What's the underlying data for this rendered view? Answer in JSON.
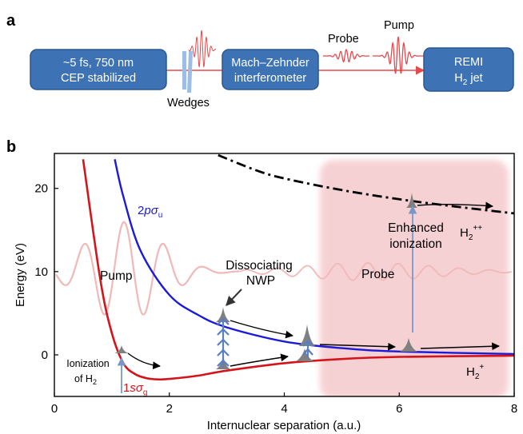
{
  "panel_a": {
    "label": "a",
    "laser_box": {
      "line1": "~5 fs, 750 nm",
      "line2": "CEP stabilized"
    },
    "wedges_label": "Wedges",
    "interferometer_box": {
      "line1": "Mach–Zehnder",
      "line2": "interferometer"
    },
    "probe_label": "Probe",
    "pump_label": "Pump",
    "remi_box": {
      "line1": "REMI",
      "line2_main": "H",
      "line2_sub": "2",
      "line2_rest": " jet"
    },
    "colors": {
      "box_fill": "#3d72b4",
      "box_stroke": "#2a5890",
      "beam": "#e8484b",
      "wedge": "#9dbde6"
    }
  },
  "panel_b": {
    "label": "b",
    "curve_labels": {
      "sigma_u": {
        "num": "2",
        "p": "p",
        "sig": "σ",
        "sub": "u"
      },
      "sigma_g": {
        "num": "1",
        "s": "s",
        "sig": "σ",
        "sub": "g"
      },
      "h2pp": {
        "main": "H",
        "sub": "2",
        "sup": "++"
      },
      "h2p": {
        "main": "H",
        "sub": "2",
        "sup": "+"
      }
    },
    "annotations": {
      "pump": "Pump",
      "probe": "Probe",
      "dissociating_line1": "Dissociating",
      "dissociating_line2": "NWP",
      "enhanced_line1": "Enhanced",
      "enhanced_line2": "ionization",
      "ionization_line1": "Ionization",
      "ionization_line2_main": "of H",
      "ionization_line2_sub": "2"
    },
    "colors": {
      "sigma_g": "#d4141b",
      "sigma_u": "#1a1ad8",
      "h2pp": "#000000",
      "pump_wave": "#f0b8b8",
      "probe_region": "#f5c9cc",
      "blue_arrow": "#7a96c8"
    }
  },
  "chart_data": {
    "type": "line",
    "xlabel": "Internuclear separation (a.u.)",
    "ylabel": "Energy (eV)",
    "xlim": [
      0,
      8
    ],
    "ylim": [
      -5,
      24
    ],
    "x_ticks": [
      "0",
      "2",
      "4",
      "6",
      "8"
    ],
    "y_ticks": [
      "0",
      "10",
      "20"
    ],
    "series": [
      {
        "name": "1sσg",
        "x": [
          0.5,
          0.8,
          1.0,
          1.2,
          1.4,
          1.6,
          1.8,
          2.0,
          2.5,
          3.0,
          4.0,
          5.0,
          6.0,
          8.0
        ],
        "values": [
          23.5,
          9.0,
          2.6,
          -1.0,
          -2.3,
          -2.8,
          -2.95,
          -2.9,
          -2.5,
          -1.9,
          -1.0,
          -0.5,
          -0.25,
          -0.1
        ]
      },
      {
        "name": "2pσu",
        "x": [
          1.05,
          1.2,
          1.5,
          2.0,
          2.5,
          3.0,
          4.0,
          5.0,
          6.0,
          8.0
        ],
        "values": [
          23.5,
          19.0,
          12.5,
          7.2,
          4.8,
          3.3,
          1.6,
          0.8,
          0.4,
          0.1
        ]
      },
      {
        "name": "H2++",
        "x": [
          2.85,
          3.5,
          4.0,
          5.0,
          6.0,
          7.0,
          8.0
        ],
        "values": [
          24.0,
          22.2,
          21.2,
          19.8,
          18.7,
          17.8,
          17.0
        ]
      }
    ]
  }
}
